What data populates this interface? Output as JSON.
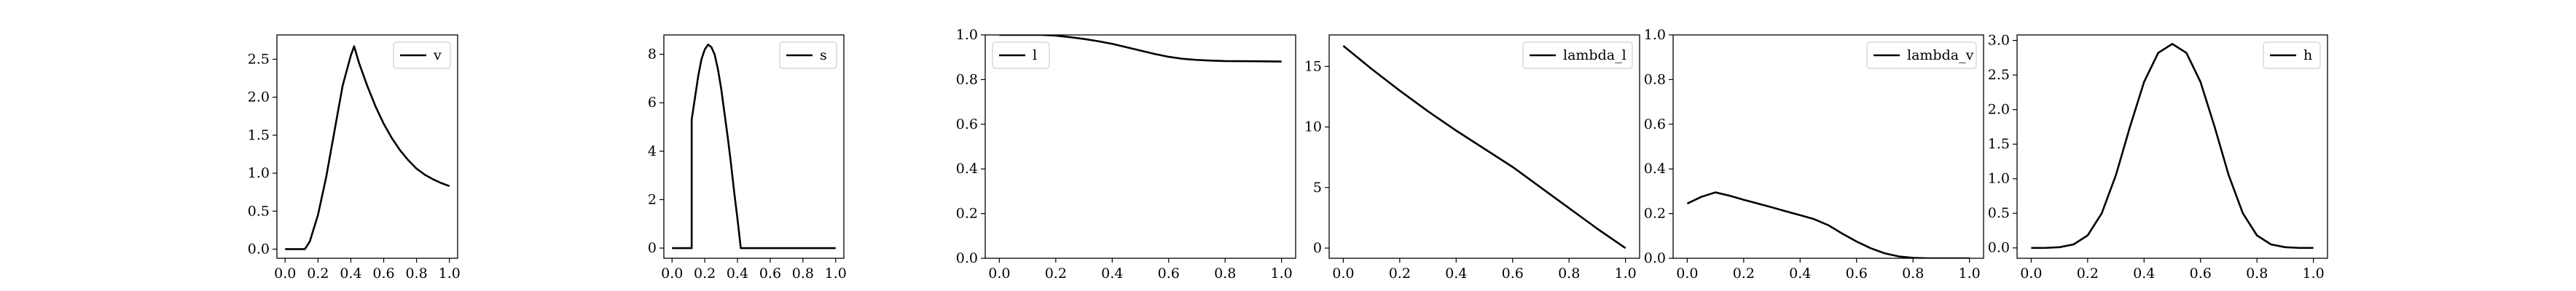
{
  "chart_data": [
    {
      "type": "line",
      "xlim": [
        -0.05,
        1.05
      ],
      "ylim": [
        -0.12,
        2.82
      ],
      "xticks": [
        0.0,
        0.2,
        0.4,
        0.6,
        0.8,
        1.0
      ],
      "xtick_labels": [
        "0.0",
        "0.2",
        "0.4",
        "0.6",
        "0.8",
        "1.0"
      ],
      "yticks": [
        0.0,
        0.5,
        1.0,
        1.5,
        2.0,
        2.5
      ],
      "ytick_labels": [
        "0.0",
        "0.5",
        "1.0",
        "1.5",
        "2.0",
        "2.5"
      ],
      "legend_position": "upper right",
      "grid": false,
      "series": [
        {
          "name": "v",
          "x": [
            0.0,
            0.05,
            0.1,
            0.12,
            0.15,
            0.2,
            0.25,
            0.3,
            0.35,
            0.4,
            0.42,
            0.45,
            0.5,
            0.55,
            0.6,
            0.65,
            0.7,
            0.75,
            0.8,
            0.85,
            0.9,
            0.95,
            1.0
          ],
          "y": [
            0.0,
            0.0,
            0.0,
            0.0,
            0.1,
            0.45,
            0.95,
            1.55,
            2.15,
            2.55,
            2.67,
            2.45,
            2.15,
            1.88,
            1.65,
            1.46,
            1.3,
            1.17,
            1.06,
            0.98,
            0.92,
            0.87,
            0.83
          ]
        }
      ]
    },
    {
      "type": "line",
      "xlim": [
        -0.05,
        1.05
      ],
      "ylim": [
        -0.42,
        8.8
      ],
      "xticks": [
        0.0,
        0.2,
        0.4,
        0.6,
        0.8,
        1.0
      ],
      "xtick_labels": [
        "0.0",
        "0.2",
        "0.4",
        "0.6",
        "0.8",
        "1.0"
      ],
      "yticks": [
        0,
        2,
        4,
        6,
        8
      ],
      "ytick_labels": [
        "0",
        "2",
        "4",
        "6",
        "8"
      ],
      "legend_position": "upper right",
      "grid": false,
      "series": [
        {
          "name": "s",
          "x": [
            0.0,
            0.05,
            0.12,
            0.12,
            0.14,
            0.16,
            0.18,
            0.2,
            0.22,
            0.24,
            0.26,
            0.28,
            0.3,
            0.32,
            0.34,
            0.36,
            0.38,
            0.4,
            0.42,
            0.45,
            0.6,
            0.8,
            1.0
          ],
          "y": [
            0.0,
            0.0,
            0.0,
            5.3,
            6.2,
            7.1,
            7.8,
            8.2,
            8.4,
            8.3,
            8.0,
            7.4,
            6.6,
            5.6,
            4.6,
            3.5,
            2.3,
            1.2,
            0.0,
            0.0,
            0.0,
            0.0,
            0.0
          ]
        }
      ]
    },
    {
      "type": "line",
      "xlim": [
        -0.05,
        1.05
      ],
      "ylim": [
        0.0,
        1.0
      ],
      "xticks": [
        0.0,
        0.2,
        0.4,
        0.6,
        0.8,
        1.0
      ],
      "xtick_labels": [
        "0.0",
        "0.2",
        "0.4",
        "0.6",
        "0.8",
        "1.0"
      ],
      "yticks": [
        0.0,
        0.2,
        0.4,
        0.6,
        0.8,
        1.0
      ],
      "ytick_labels": [
        "0.0",
        "0.2",
        "0.4",
        "0.6",
        "0.8",
        "1.0"
      ],
      "legend_position": "upper left",
      "grid": false,
      "series": [
        {
          "name": "l",
          "x": [
            0.0,
            0.1,
            0.15,
            0.2,
            0.25,
            0.3,
            0.35,
            0.4,
            0.45,
            0.5,
            0.55,
            0.6,
            0.65,
            0.7,
            0.75,
            0.8,
            0.9,
            1.0
          ],
          "y": [
            1.0,
            1.0,
            1.0,
            0.997,
            0.99,
            0.982,
            0.972,
            0.96,
            0.945,
            0.93,
            0.915,
            0.902,
            0.893,
            0.888,
            0.885,
            0.883,
            0.882,
            0.881
          ]
        }
      ]
    },
    {
      "type": "line",
      "xlim": [
        -0.05,
        1.05
      ],
      "ylim": [
        -0.84,
        17.6
      ],
      "xticks": [
        0.0,
        0.2,
        0.4,
        0.6,
        0.8,
        1.0
      ],
      "xtick_labels": [
        "0.0",
        "0.2",
        "0.4",
        "0.6",
        "0.8",
        "1.0"
      ],
      "yticks": [
        0,
        5,
        10,
        15
      ],
      "ytick_labels": [
        "0",
        "5",
        "10",
        "15"
      ],
      "legend_position": "upper right",
      "grid": false,
      "series": [
        {
          "name": "lambda_l",
          "x": [
            0.0,
            0.1,
            0.2,
            0.3,
            0.4,
            0.5,
            0.6,
            0.7,
            0.8,
            0.9,
            1.0
          ],
          "y": [
            16.7,
            14.8,
            13.0,
            11.3,
            9.7,
            8.2,
            6.7,
            5.0,
            3.3,
            1.6,
            0.0
          ]
        }
      ]
    },
    {
      "type": "line",
      "xlim": [
        -0.05,
        1.05
      ],
      "ylim": [
        0.0,
        1.0
      ],
      "xticks": [
        0.0,
        0.2,
        0.4,
        0.6,
        0.8,
        1.0
      ],
      "xtick_labels": [
        "0.0",
        "0.2",
        "0.4",
        "0.6",
        "0.8",
        "1.0"
      ],
      "yticks": [
        0.0,
        0.2,
        0.4,
        0.6,
        0.8,
        1.0
      ],
      "ytick_labels": [
        "0.0",
        "0.2",
        "0.4",
        "0.6",
        "0.8",
        "1.0"
      ],
      "legend_position": "upper right",
      "grid": false,
      "series": [
        {
          "name": "lambda_v",
          "x": [
            0.0,
            0.05,
            0.1,
            0.15,
            0.2,
            0.25,
            0.3,
            0.35,
            0.4,
            0.45,
            0.5,
            0.55,
            0.6,
            0.65,
            0.7,
            0.75,
            0.8,
            0.85,
            0.9,
            1.0
          ],
          "y": [
            0.245,
            0.275,
            0.295,
            0.28,
            0.262,
            0.245,
            0.228,
            0.21,
            0.193,
            0.175,
            0.148,
            0.11,
            0.075,
            0.045,
            0.022,
            0.008,
            0.002,
            0.0,
            0.0,
            0.0
          ]
        }
      ]
    },
    {
      "type": "line",
      "xlim": [
        -0.05,
        1.05
      ],
      "ylim": [
        -0.15,
        3.08
      ],
      "xticks": [
        0.0,
        0.2,
        0.4,
        0.6,
        0.8,
        1.0
      ],
      "xtick_labels": [
        "0.0",
        "0.2",
        "0.4",
        "0.6",
        "0.8",
        "1.0"
      ],
      "yticks": [
        0.0,
        0.5,
        1.0,
        1.5,
        2.0,
        2.5,
        3.0
      ],
      "ytick_labels": [
        "0.0",
        "0.5",
        "1.0",
        "1.5",
        "2.0",
        "2.5",
        "3.0"
      ],
      "legend_position": "upper right",
      "grid": false,
      "series": [
        {
          "name": "h",
          "x": [
            0.0,
            0.05,
            0.1,
            0.15,
            0.2,
            0.25,
            0.3,
            0.35,
            0.4,
            0.45,
            0.5,
            0.55,
            0.6,
            0.65,
            0.7,
            0.75,
            0.8,
            0.85,
            0.9,
            0.95,
            1.0
          ],
          "y": [
            0.0,
            0.0,
            0.01,
            0.05,
            0.18,
            0.5,
            1.05,
            1.75,
            2.4,
            2.82,
            2.95,
            2.82,
            2.4,
            1.75,
            1.05,
            0.5,
            0.18,
            0.05,
            0.01,
            0.0,
            0.0
          ]
        }
      ]
    }
  ]
}
